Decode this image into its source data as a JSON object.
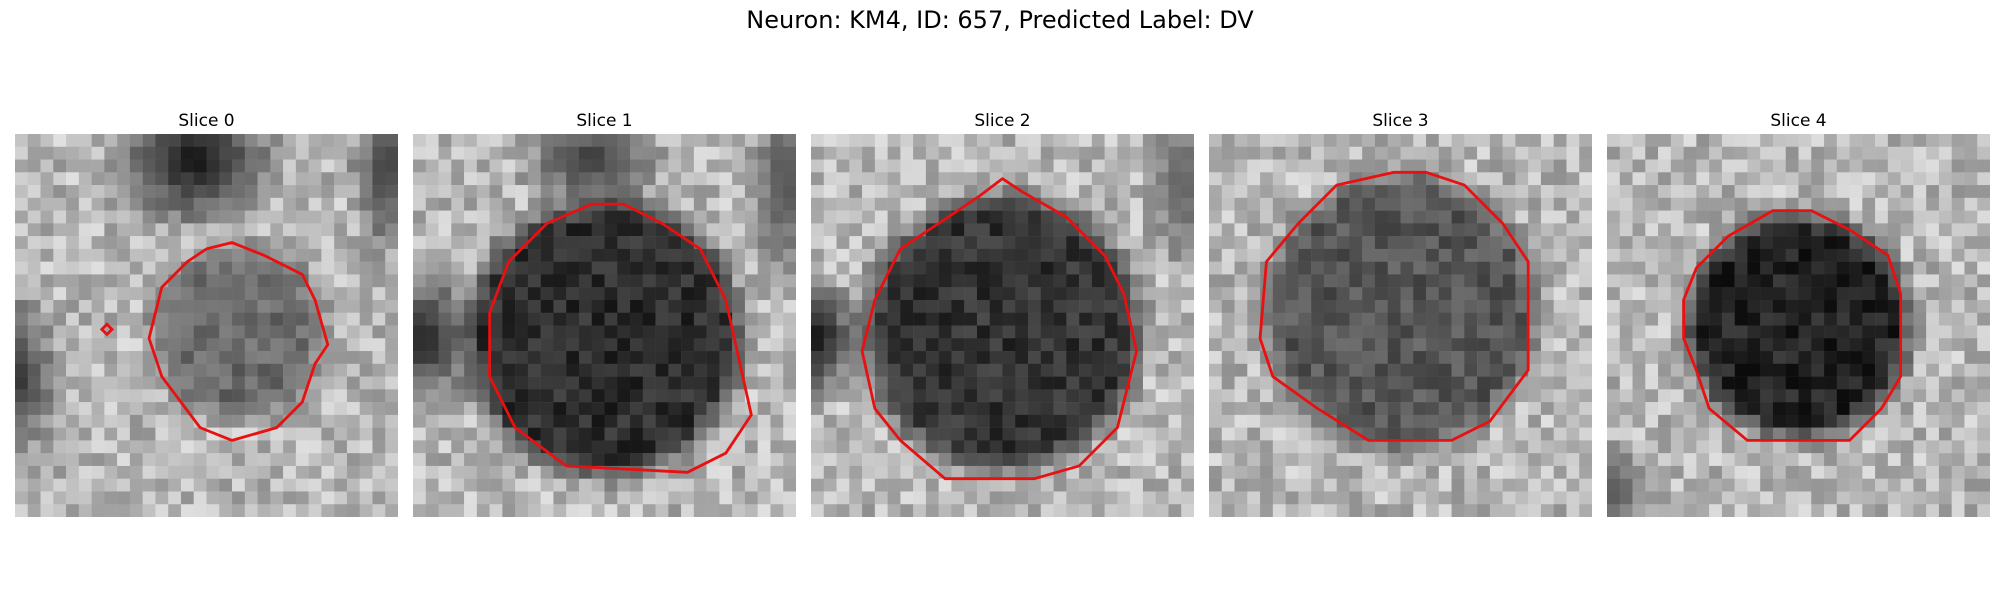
{
  "figure": {
    "title": "Neuron: KM4, ID: 657, Predicted Label: DV"
  },
  "panels": [
    {
      "title": "Slice 0",
      "contour_color": "#e81010"
    },
    {
      "title": "Slice 1",
      "contour_color": "#e81010"
    },
    {
      "title": "Slice 2",
      "contour_color": "#e81010"
    },
    {
      "title": "Slice 3",
      "contour_color": "#e81010"
    },
    {
      "title": "Slice 4",
      "contour_color": "#e81010"
    }
  ]
}
